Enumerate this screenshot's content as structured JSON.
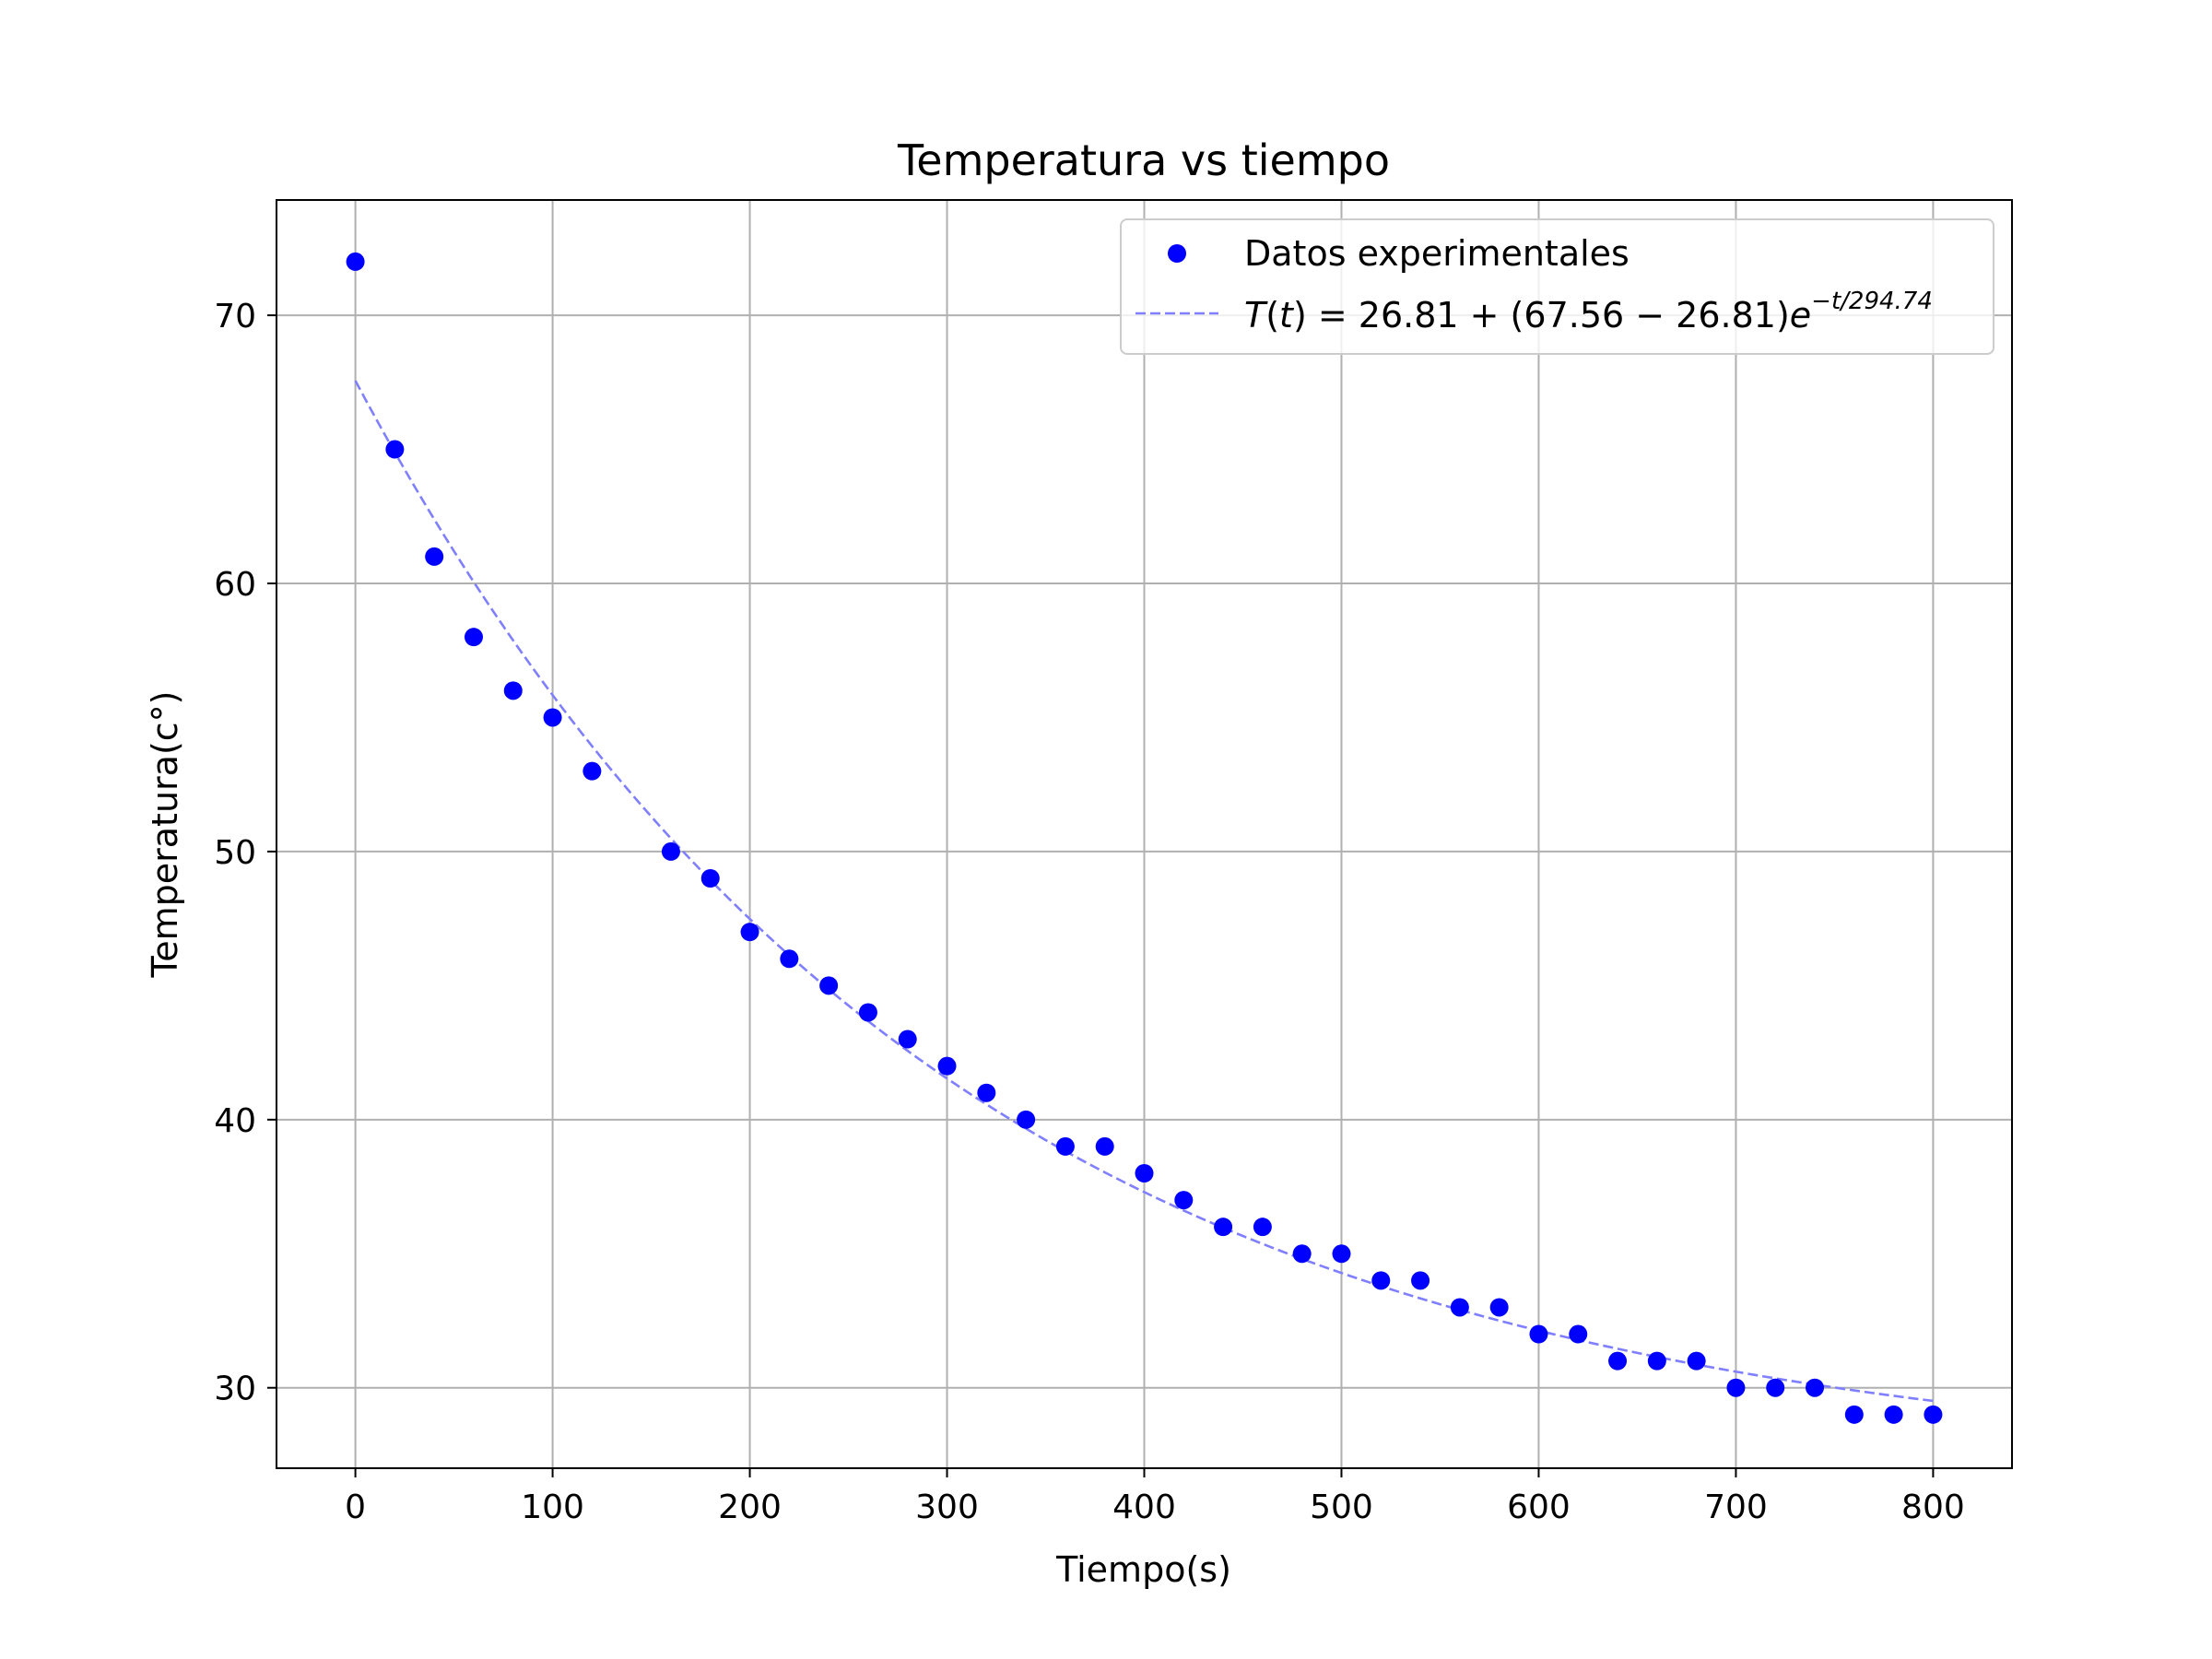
{
  "chart_data": {
    "type": "scatter",
    "title": "Temperatura vs tiempo",
    "xlabel": "Tiempo(s)",
    "ylabel": "Temperatura(c°)",
    "xlim": [
      -40,
      840
    ],
    "ylim": [
      27.0,
      74.3
    ],
    "xticks": [
      0,
      100,
      200,
      300,
      400,
      500,
      600,
      700,
      800
    ],
    "yticks": [
      30,
      40,
      50,
      60,
      70
    ],
    "grid": true,
    "legend_position": "top-right",
    "colors": {
      "points": "#0000ff",
      "fit_line": "#7f7fff",
      "grid": "#b0b0b0"
    },
    "series": [
      {
        "name": "Datos experimentales",
        "kind": "markers",
        "x": [
          0,
          20,
          40,
          60,
          80,
          100,
          120,
          160,
          180,
          200,
          220,
          240,
          260,
          280,
          300,
          320,
          340,
          360,
          380,
          400,
          420,
          440,
          460,
          480,
          500,
          520,
          540,
          560,
          580,
          600,
          620,
          640,
          660,
          680,
          700,
          720,
          740,
          760,
          780,
          800
        ],
        "y": [
          72,
          65,
          61,
          58,
          56,
          55,
          53,
          50,
          49,
          47,
          46,
          45,
          44,
          43,
          42,
          41,
          40,
          39,
          39,
          38,
          37,
          36,
          36,
          35,
          35,
          34,
          34,
          33,
          33,
          32,
          32,
          31,
          31,
          31,
          30,
          30,
          30,
          29,
          29,
          29
        ]
      },
      {
        "name": "T(t) = 26.81 + (67.56 − 26.81)e^(−t/294.74)",
        "kind": "dashed-line",
        "model": {
          "T_env": 26.81,
          "T0": 67.56,
          "tau": 294.74
        },
        "x_range": [
          0,
          800
        ]
      }
    ],
    "legend": {
      "items": [
        {
          "label": "Datos experimentales"
        },
        {
          "label_parts": {
            "T": "T",
            "open_t": "(",
            "t": "t",
            "close_eq": ") = 26.81 + (67.56 − 26.81)",
            "e": "e",
            "exponent": "−t/294.74"
          }
        }
      ]
    }
  }
}
